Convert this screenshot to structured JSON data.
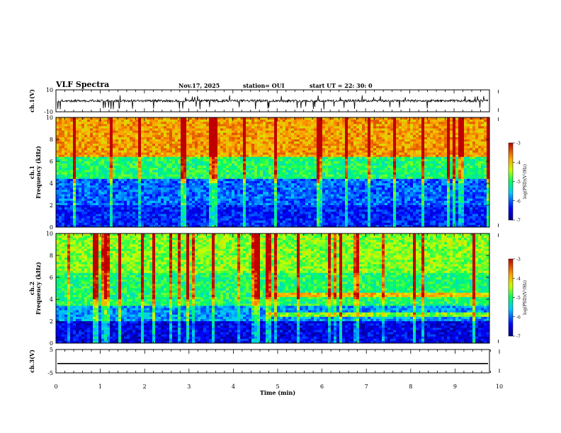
{
  "header": {
    "title": "VLF Spectra",
    "date": "Nov.17, 2025",
    "station": "station= OUI",
    "start": "start  UT  =   22: 30: 0"
  },
  "chart_data": [
    {
      "type": "line",
      "ylabel": "ch.1(V)",
      "ylim": [
        -10,
        10
      ],
      "yticks": [
        "10",
        "-10"
      ],
      "xlim": [
        0,
        10
      ],
      "description_values": {
        "baseline": 0,
        "burst_min": -8,
        "burst_max": 5
      }
    },
    {
      "type": "heatmap",
      "ylabel_line1": "ch.1",
      "ylabel_line2": "Frequency  (kHz)",
      "ylim": [
        0,
        10
      ],
      "yticks": [
        "10",
        "8",
        "6",
        "4",
        "2",
        "0"
      ],
      "xlim": [
        0,
        10
      ],
      "colorbar": {
        "label": "log(PSD)(V²/Hz)",
        "ticks": [
          "-3",
          "-4",
          "-5",
          "-6",
          "-7"
        ],
        "range": [
          -7,
          -3
        ]
      },
      "bands_khz": [
        {
          "from": 0,
          "to": 2,
          "level": -6.3
        },
        {
          "from": 2,
          "to": 4.5,
          "level": -6.0
        },
        {
          "from": 4.5,
          "to": 6.5,
          "level": -5.0
        },
        {
          "from": 6.5,
          "to": 10,
          "level": -3.8
        }
      ]
    },
    {
      "type": "heatmap",
      "ylabel_line1": "ch.2",
      "ylabel_line2": "Frequency  (kHz)",
      "ylim": [
        0,
        10
      ],
      "yticks": [
        "10",
        "8",
        "6",
        "4",
        "2",
        "0"
      ],
      "xlim": [
        0,
        10
      ],
      "colorbar": {
        "label": "log(PSD)(V²/Hz)",
        "ticks": [
          "-3",
          "-4",
          "-5",
          "-6",
          "-7"
        ],
        "range": [
          -7,
          -3
        ]
      },
      "bands_khz": [
        {
          "from": 0,
          "to": 2,
          "level": -6.5
        },
        {
          "from": 2,
          "to": 3.5,
          "level": -5.8
        },
        {
          "from": 3.5,
          "to": 6.5,
          "level": -5.0
        },
        {
          "from": 6.5,
          "to": 10,
          "level": -4.6
        }
      ]
    },
    {
      "type": "line",
      "ylabel": "ch.3(V)",
      "ylim": [
        -5,
        5
      ],
      "yticks": [
        "5",
        "-5"
      ],
      "xlim": [
        0,
        10
      ],
      "values_const": -1,
      "xlabel": "Time  (min)",
      "xticks": [
        "0",
        "1",
        "2",
        "3",
        "4",
        "5",
        "6",
        "7",
        "8",
        "9",
        "10"
      ]
    }
  ],
  "colors": {
    "axis": "#000000",
    "low": "#000080",
    "high": "#cc0000"
  }
}
